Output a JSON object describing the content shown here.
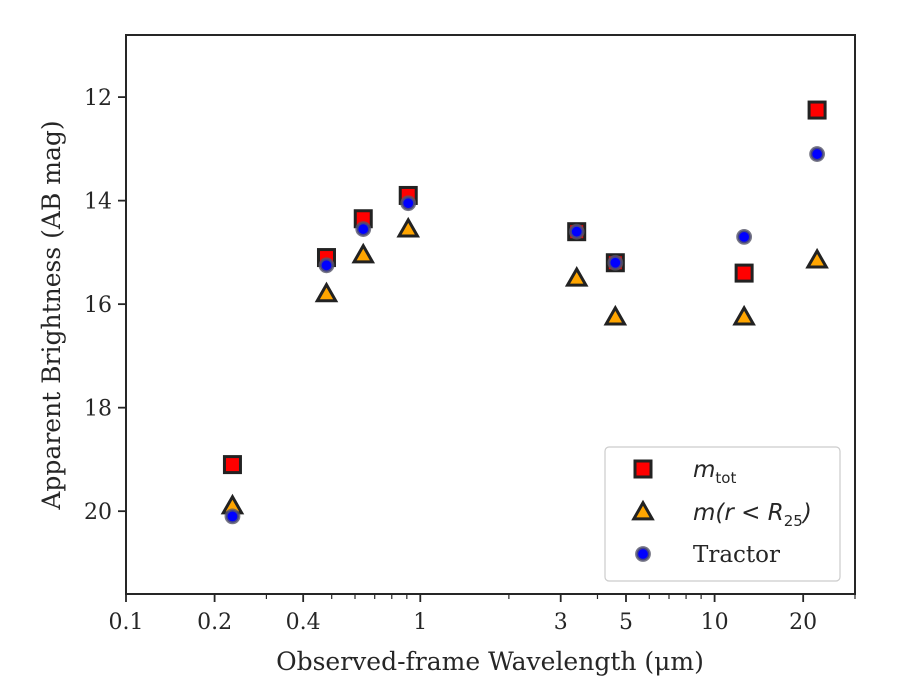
{
  "chart_data": {
    "type": "scatter",
    "title": "",
    "xlabel": "Observed-frame Wavelength (μm)",
    "ylabel": "Apparent Brightness (AB mag)",
    "xscale": "log",
    "xlim": [
      0.1,
      30
    ],
    "ylim": [
      21.6,
      10.8
    ],
    "y_inverted": true,
    "grid": false,
    "legend_position": "lower-right",
    "x_major_ticks": [
      0.1,
      0.2,
      0.4,
      1,
      3,
      5,
      10,
      20
    ],
    "x_tick_labels": [
      "0.1",
      "0.2",
      "0.4",
      "1",
      "3",
      "5",
      "10",
      "20"
    ],
    "y_ticks": [
      12,
      14,
      16,
      18,
      20
    ],
    "y_tick_labels": [
      "12",
      "14",
      "16",
      "18",
      "20"
    ],
    "series": [
      {
        "name": "m_tot",
        "legend_label": {
          "main": "m",
          "sub": "tot"
        },
        "marker": "square",
        "color": "#ff0000",
        "edge_color": "#222222",
        "points": [
          {
            "x": 0.23,
            "y": 19.1
          },
          {
            "x": 0.48,
            "y": 15.1
          },
          {
            "x": 0.64,
            "y": 14.35
          },
          {
            "x": 0.91,
            "y": 13.9
          },
          {
            "x": 3.4,
            "y": 14.6
          },
          {
            "x": 4.6,
            "y": 15.2
          },
          {
            "x": 12.6,
            "y": 15.4
          },
          {
            "x": 22.3,
            "y": 12.25
          }
        ]
      },
      {
        "name": "m(r < R25)",
        "legend_label": {
          "main": "m(r < R",
          "sub": "25",
          "tail": ")"
        },
        "marker": "triangle",
        "color": "#ffa500",
        "edge_color": "#222222",
        "points": [
          {
            "x": 0.23,
            "y": 19.9
          },
          {
            "x": 0.48,
            "y": 15.8
          },
          {
            "x": 0.64,
            "y": 15.05
          },
          {
            "x": 0.91,
            "y": 14.55
          },
          {
            "x": 3.4,
            "y": 15.5
          },
          {
            "x": 4.6,
            "y": 16.25
          },
          {
            "x": 12.6,
            "y": 16.25
          },
          {
            "x": 22.3,
            "y": 15.15
          }
        ]
      },
      {
        "name": "Tractor",
        "legend_label": {
          "main": "Tractor"
        },
        "marker": "circle",
        "color": "#0000ff",
        "edge_color": "#555566",
        "points": [
          {
            "x": 0.23,
            "y": 20.1
          },
          {
            "x": 0.48,
            "y": 15.25
          },
          {
            "x": 0.64,
            "y": 14.55
          },
          {
            "x": 0.91,
            "y": 14.05
          },
          {
            "x": 3.4,
            "y": 14.6
          },
          {
            "x": 4.6,
            "y": 15.2
          },
          {
            "x": 12.6,
            "y": 14.7
          },
          {
            "x": 22.3,
            "y": 13.1
          }
        ]
      }
    ]
  }
}
